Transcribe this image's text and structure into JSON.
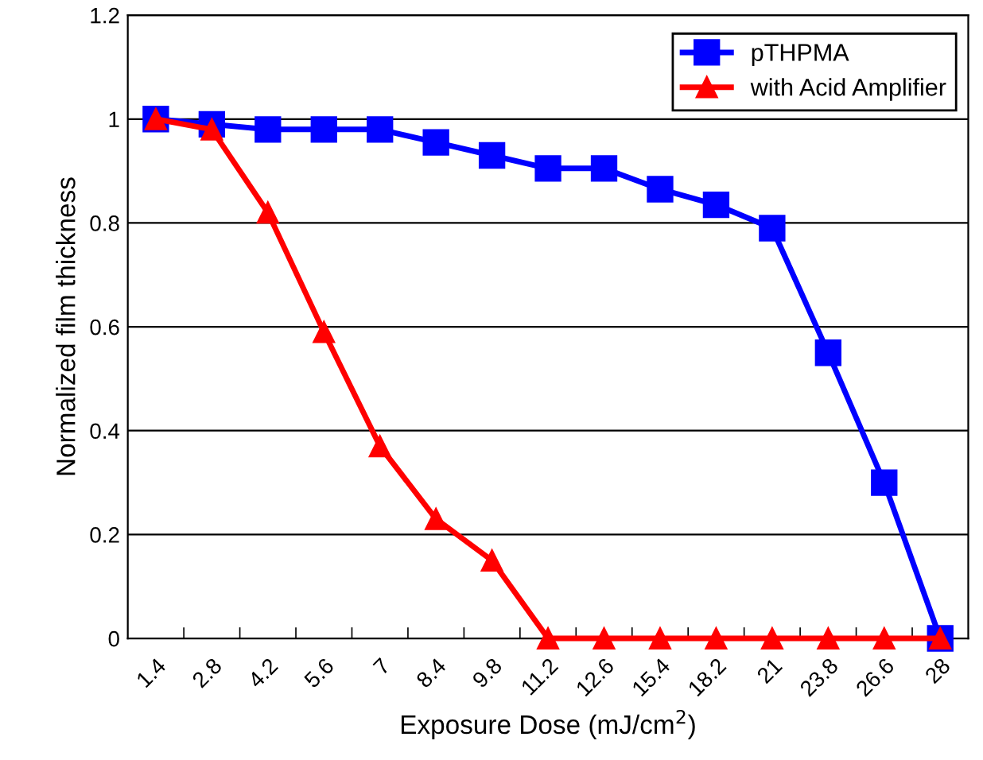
{
  "chart_data": {
    "type": "line",
    "xlabel": "Exposure Dose (mJ/cm$^{2}$)",
    "ylabel": "Normalized film thickness",
    "categories": [
      "1.4",
      "2.8",
      "4.2",
      "5.6",
      "7",
      "8.4",
      "9.8",
      "11.2",
      "12.6",
      "15.4",
      "18.2",
      "21",
      "23.8",
      "26.6",
      "28"
    ],
    "series": [
      {
        "name": "pTHPMA",
        "color": "#0000ff",
        "marker": "square",
        "values": [
          1,
          0.99,
          0.98,
          0.98,
          0.98,
          0.955,
          0.93,
          0.905,
          0.905,
          0.865,
          0.835,
          0.79,
          0.55,
          0.3,
          0.0
        ]
      },
      {
        "name": "with Acid Amplifier",
        "color": "#ff0000",
        "marker": "triangle",
        "values": [
          1,
          0.98,
          0.82,
          0.59,
          0.37,
          0.23,
          0.15,
          0,
          0,
          0,
          0,
          0,
          0,
          0,
          0
        ]
      }
    ],
    "ylim": [
      0,
      1.2
    ],
    "yticks": [
      0,
      0.2,
      0.4,
      0.6,
      0.8,
      1,
      1.2
    ],
    "grid": "y",
    "legend": "top right",
    "line_style": "solid"
  }
}
